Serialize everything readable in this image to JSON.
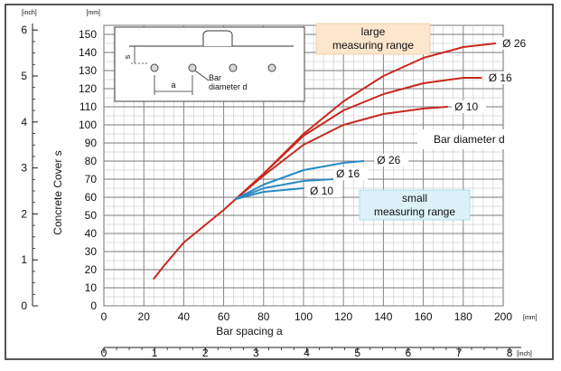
{
  "chart_data": {
    "type": "line",
    "xlabel": "Bar spacing a",
    "ylabel": "Concrete Cover s",
    "x_unit_primary": "[mm]",
    "x_unit_secondary": "[inch]",
    "y_unit_primary": "[mm]",
    "y_unit_secondary": "[inch]",
    "xlim": [
      0,
      200
    ],
    "ylim": [
      0,
      155
    ],
    "x_ticks_mm": [
      "0",
      "20",
      "40",
      "60",
      "80",
      "100",
      "120",
      "140",
      "160",
      "180",
      "200"
    ],
    "x_ticks_inch": [
      "0",
      "1",
      "2",
      "3",
      "4",
      "5",
      "6",
      "7",
      "8"
    ],
    "y_ticks_mm": [
      "0",
      "10",
      "20",
      "30",
      "40",
      "50",
      "60",
      "70",
      "80",
      "90",
      "100",
      "110",
      "120",
      "130",
      "140",
      "150"
    ],
    "y_ticks_inch": [
      "0",
      "1",
      "2",
      "3",
      "4",
      "5",
      "6"
    ],
    "grid": true,
    "groups": [
      {
        "label": "large\nmeasuring range",
        "color": "#c8281e"
      },
      {
        "label": "small\nmeasuring range",
        "color": "#2a8ac4"
      }
    ],
    "legend_title": "Bar diameter d",
    "series": [
      {
        "name": "Ø 26",
        "range": "large",
        "color": "#c8281e",
        "x": [
          25,
          30,
          40,
          50,
          60,
          66,
          80,
          100,
          120,
          140,
          160,
          180,
          196
        ],
        "y": [
          15,
          22,
          35,
          44,
          53,
          59,
          73,
          95,
          113,
          127,
          137,
          143,
          145
        ]
      },
      {
        "name": "Ø 16",
        "range": "large",
        "color": "#c8281e",
        "x": [
          66,
          80,
          100,
          120,
          140,
          160,
          180,
          189
        ],
        "y": [
          59,
          73,
          94,
          108,
          117,
          123,
          126,
          126
        ]
      },
      {
        "name": "Ø 10",
        "range": "large",
        "color": "#c8281e",
        "x": [
          66,
          80,
          100,
          120,
          140,
          160,
          172
        ],
        "y": [
          59,
          72,
          89,
          100,
          106,
          109,
          110
        ]
      },
      {
        "name": "Ø 26",
        "range": "small",
        "color": "#2a8ac4",
        "x": [
          66,
          80,
          100,
          120,
          130
        ],
        "y": [
          59,
          67,
          75,
          79,
          80
        ]
      },
      {
        "name": "Ø 16",
        "range": "small",
        "color": "#2a8ac4",
        "x": [
          66,
          80,
          100,
          115
        ],
        "y": [
          59,
          65,
          69,
          70
        ]
      },
      {
        "name": "Ø 10",
        "range": "small",
        "color": "#2a8ac4",
        "x": [
          66,
          80,
          100
        ],
        "y": [
          59,
          63,
          65
        ]
      }
    ],
    "inset": {
      "s_label": "s",
      "a_label": "a",
      "d_label": "Bar\ndiameter d"
    }
  }
}
